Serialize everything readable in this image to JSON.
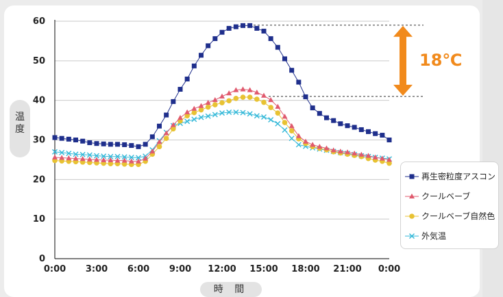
{
  "chart_data": {
    "type": "line",
    "title": "",
    "xlabel": "時 間",
    "ylabel": "温度",
    "ylim": [
      0,
      60
    ],
    "yticks": [
      0,
      10,
      20,
      30,
      40,
      50,
      60
    ],
    "xtick_labels": [
      "0:00",
      "3:00",
      "6:00",
      "9:00",
      "12:00",
      "15:00",
      "18:00",
      "21:00",
      "0:00"
    ],
    "x_hours": [
      0,
      0.5,
      1,
      1.5,
      2,
      2.5,
      3,
      3.5,
      4,
      4.5,
      5,
      5.5,
      6,
      6.5,
      7,
      7.5,
      8,
      8.5,
      9,
      9.5,
      10,
      10.5,
      11,
      11.5,
      12,
      12.5,
      13,
      13.5,
      14,
      14.5,
      15,
      15.5,
      16,
      16.5,
      17,
      17.5,
      18,
      18.5,
      19,
      19.5,
      20,
      20.5,
      21,
      21.5,
      22,
      22.5,
      23,
      23.5,
      24
    ],
    "grid": true,
    "legend_position": "right",
    "annotation": {
      "text": "18℃",
      "color": "#f18a1c",
      "from": 41,
      "to": 59
    },
    "series": [
      {
        "name": "再生密粒度アスコン",
        "color": "#1f2f8c",
        "marker": "square",
        "values": [
          30.6,
          30.4,
          30.2,
          30.0,
          29.7,
          29.3,
          29.1,
          29.0,
          28.9,
          28.9,
          28.8,
          28.6,
          28.3,
          28.9,
          30.8,
          33.5,
          36.3,
          39.7,
          42.8,
          45.4,
          48.7,
          51.4,
          53.8,
          55.6,
          57.2,
          58.2,
          58.6,
          58.9,
          58.9,
          58.2,
          57.5,
          55.6,
          53.4,
          50.5,
          47.6,
          44.6,
          40.9,
          38.1,
          36.7,
          35.6,
          34.9,
          34.1,
          33.6,
          33.2,
          32.6,
          32.1,
          31.6,
          31.2,
          30.0
        ]
      },
      {
        "name": "クールベーブ",
        "color": "#e05a6e",
        "marker": "triangle",
        "values": [
          25.6,
          25.5,
          25.4,
          25.3,
          25.2,
          25.1,
          25.0,
          24.9,
          24.9,
          24.8,
          24.8,
          24.6,
          24.6,
          25.3,
          27.1,
          29.5,
          31.7,
          33.8,
          35.6,
          37.0,
          37.9,
          38.6,
          39.4,
          40.1,
          41.0,
          41.8,
          42.6,
          42.8,
          42.6,
          42.0,
          41.2,
          40.1,
          38.4,
          35.9,
          33.5,
          31.0,
          29.6,
          28.8,
          28.3,
          27.9,
          27.4,
          27.1,
          26.9,
          26.6,
          26.3,
          26.0,
          25.6,
          25.3,
          25.0
        ]
      },
      {
        "name": "クールベーブ自然色",
        "color": "#e8c233",
        "marker": "circle",
        "values": [
          24.8,
          24.7,
          24.6,
          24.5,
          24.4,
          24.3,
          24.2,
          24.1,
          24.0,
          24.0,
          23.9,
          23.8,
          23.8,
          24.6,
          26.4,
          28.3,
          30.4,
          32.8,
          34.8,
          36.1,
          36.9,
          37.6,
          38.3,
          38.9,
          39.4,
          39.9,
          40.5,
          40.8,
          40.8,
          40.3,
          39.5,
          38.2,
          36.8,
          34.4,
          32.3,
          30.3,
          29.1,
          28.3,
          27.9,
          27.5,
          27.0,
          26.7,
          26.4,
          26.1,
          25.8,
          25.3,
          24.9,
          24.6,
          24.1
        ]
      },
      {
        "name": "外気温",
        "color": "#33b8d8",
        "marker": "x",
        "values": [
          27.0,
          26.8,
          26.6,
          26.4,
          26.3,
          26.2,
          26.0,
          25.9,
          25.8,
          25.8,
          25.7,
          25.6,
          25.5,
          25.9,
          27.5,
          29.8,
          31.9,
          33.6,
          34.2,
          34.7,
          35.2,
          35.7,
          36.0,
          36.4,
          36.8,
          37.0,
          37.0,
          36.9,
          36.6,
          36.1,
          35.8,
          35.1,
          34.1,
          32.5,
          30.4,
          28.8,
          28.4,
          28.0,
          27.7,
          27.4,
          27.1,
          26.8,
          26.6,
          26.3,
          26.0,
          25.8,
          25.6,
          25.4,
          25.2
        ]
      }
    ]
  }
}
